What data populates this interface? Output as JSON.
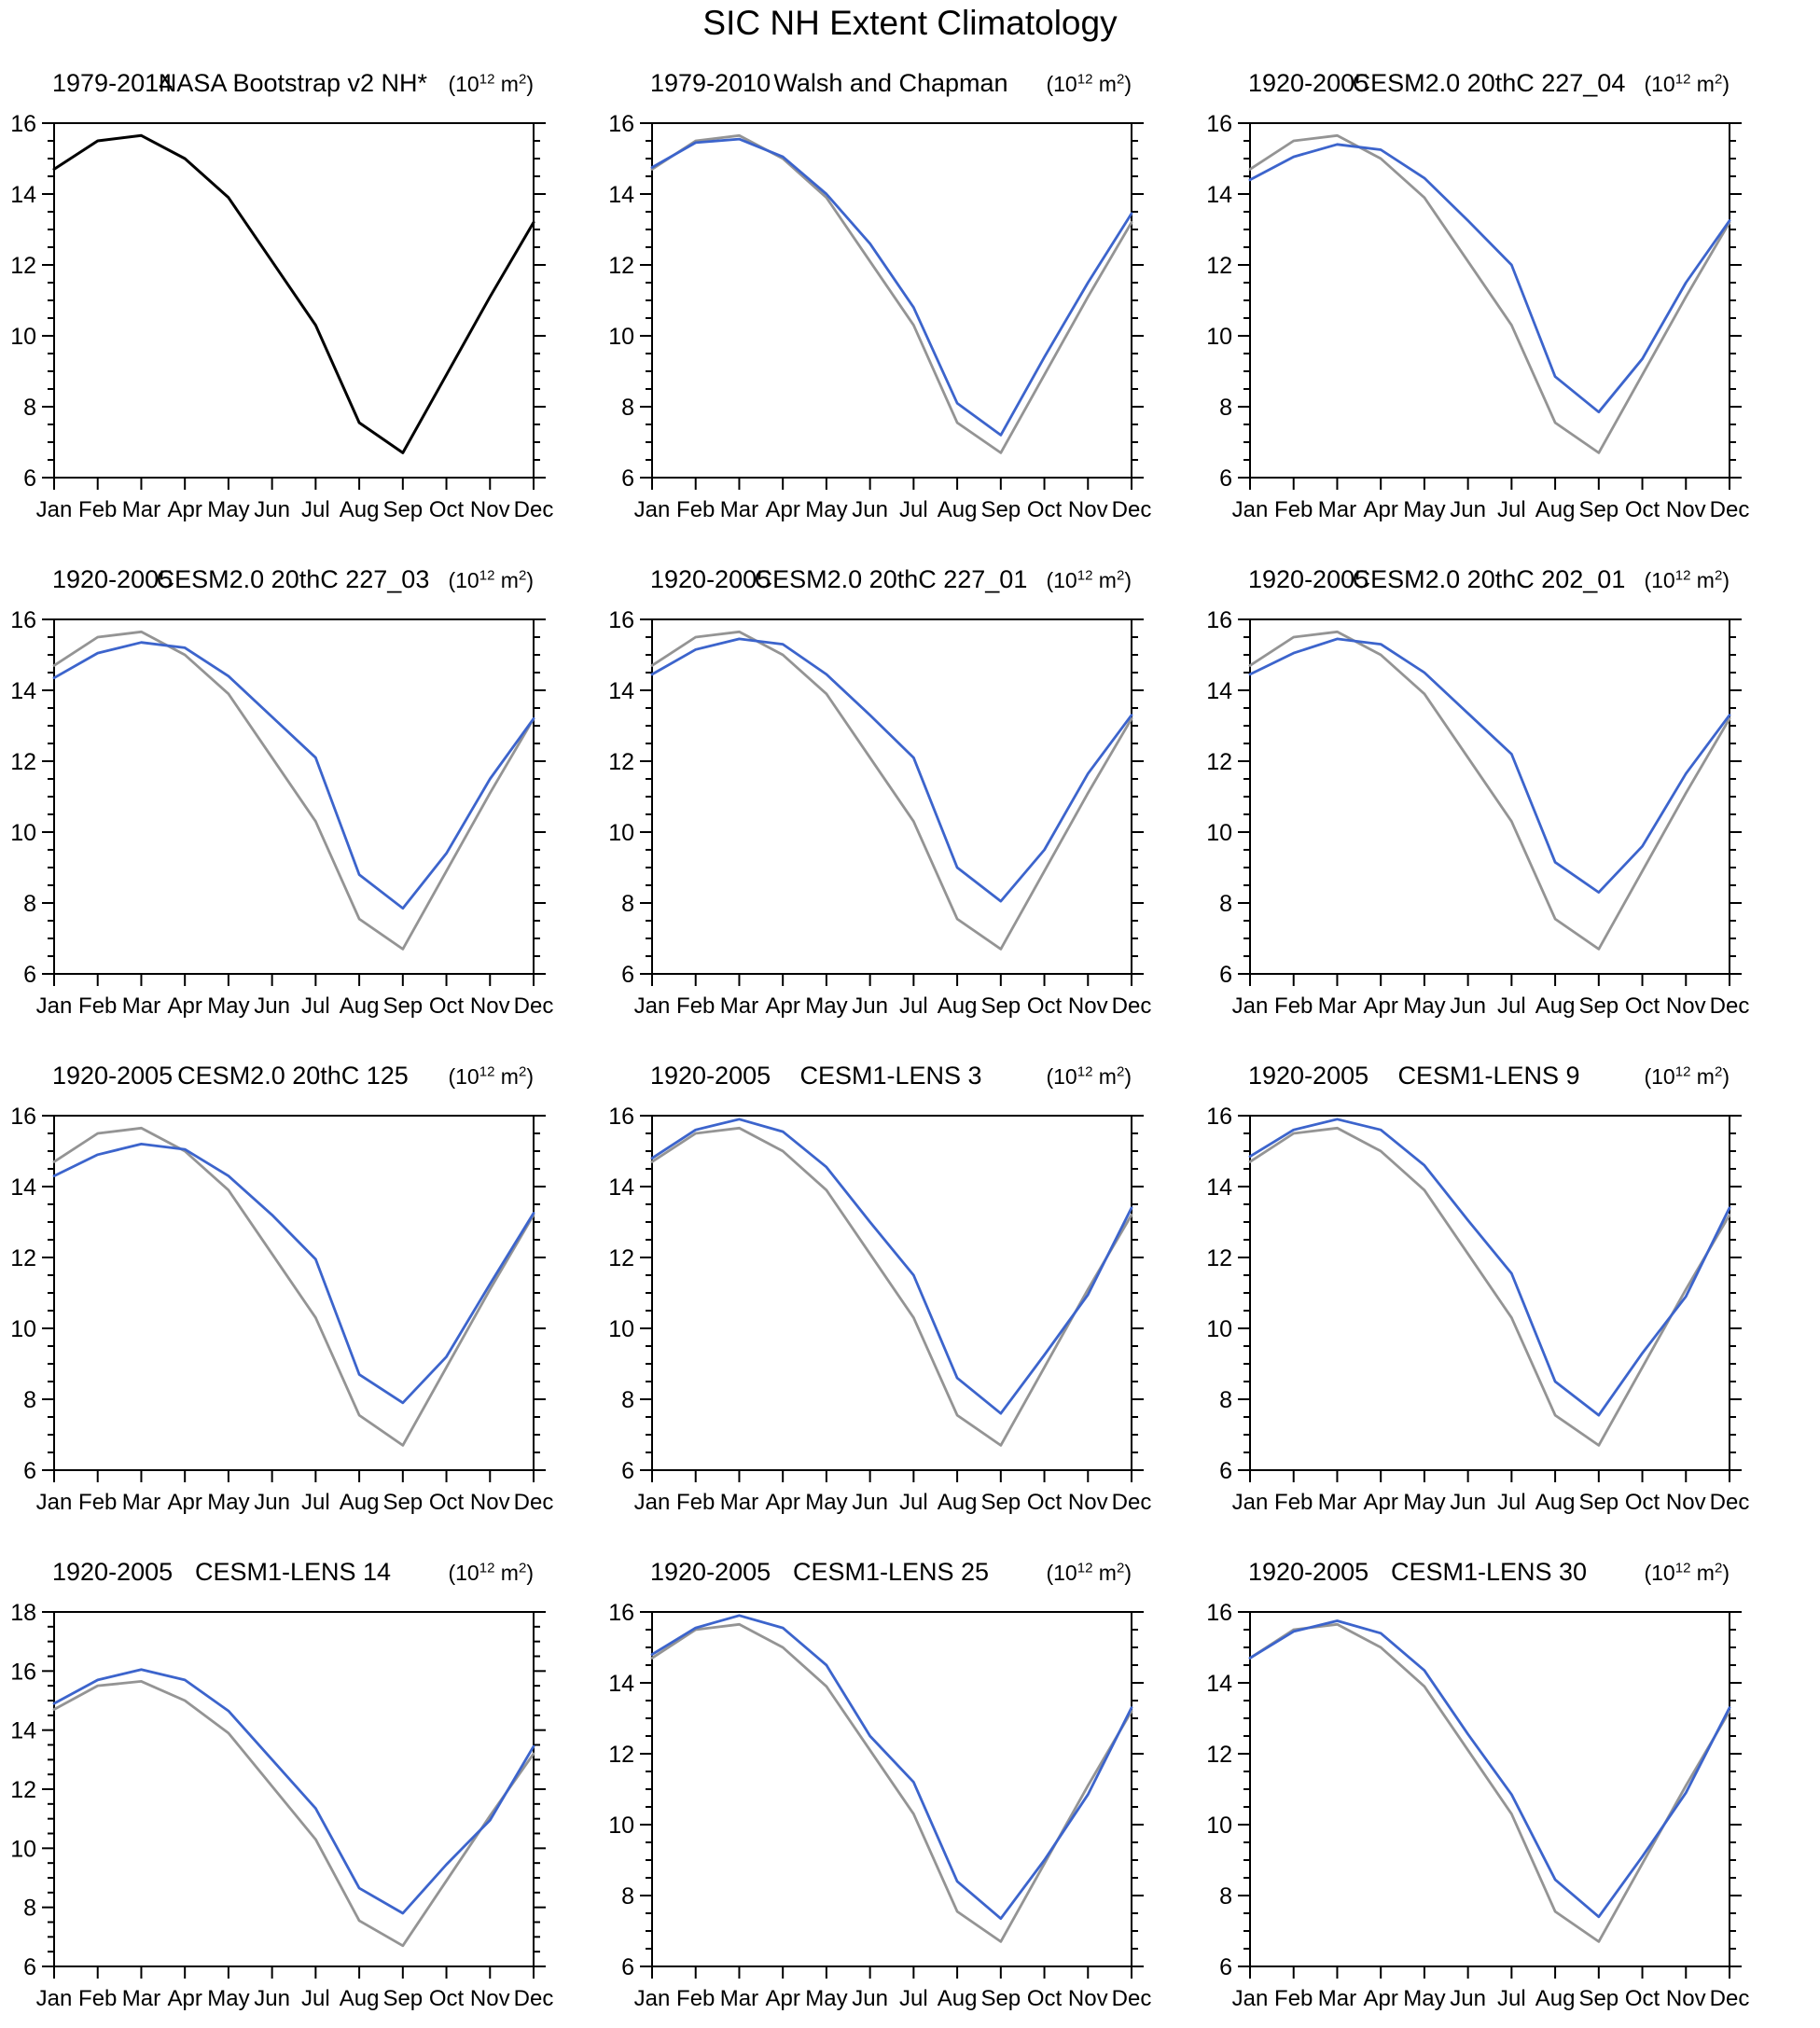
{
  "page_title": "SIC NH Extent Climatology",
  "common": {
    "months": [
      "Jan",
      "Feb",
      "Mar",
      "Apr",
      "May",
      "Jun",
      "Jul",
      "Aug",
      "Sep",
      "Oct",
      "Nov",
      "Dec"
    ],
    "unit_prefix": "(10",
    "unit_exp": "12",
    "unit_mid": " m",
    "unit_exp2": "2",
    "unit_suffix": ")"
  },
  "colors": {
    "obs_black": "#000000",
    "obs_gray": "#949494",
    "model_blue": "#3c64cc",
    "axis": "#000000"
  },
  "chart_data": [
    {
      "type": "line",
      "period": "1979-2014",
      "title": "NASA Bootstrap v2 NH*",
      "xlabel": "",
      "ylabel": "",
      "ylim": [
        6,
        16
      ],
      "ytick_step": 2,
      "minor_step": 0.5,
      "yticks": [
        "6",
        "8",
        "10",
        "12",
        "14",
        "16"
      ],
      "grid": false,
      "legend": "none",
      "series": [
        {
          "name": "obs-black",
          "color": "#000000",
          "width": 3,
          "values": [
            14.7,
            15.5,
            15.65,
            15.0,
            13.9,
            12.1,
            10.3,
            7.55,
            6.7,
            8.9,
            11.1,
            13.2
          ]
        }
      ]
    },
    {
      "type": "line",
      "period": "1979-2010",
      "title": "Walsh and Chapman",
      "xlabel": "",
      "ylabel": "",
      "ylim": [
        6,
        16
      ],
      "ytick_step": 2,
      "minor_step": 0.5,
      "yticks": [
        "6",
        "8",
        "10",
        "12",
        "14",
        "16"
      ],
      "grid": false,
      "legend": "none",
      "series": [
        {
          "name": "obs-gray",
          "color": "#949494",
          "width": 2.8,
          "values": [
            14.7,
            15.5,
            15.65,
            15.0,
            13.9,
            12.1,
            10.3,
            7.55,
            6.7,
            8.9,
            11.1,
            13.2
          ]
        },
        {
          "name": "model-blue",
          "color": "#3c64cc",
          "width": 2.8,
          "values": [
            14.75,
            15.45,
            15.55,
            15.05,
            14.0,
            12.6,
            10.8,
            8.1,
            7.2,
            9.4,
            11.5,
            13.45
          ]
        }
      ]
    },
    {
      "type": "line",
      "period": "1920-2005",
      "title": "CESM2.0 20thC 227_04",
      "xlabel": "",
      "ylabel": "",
      "ylim": [
        6,
        16
      ],
      "ytick_step": 2,
      "minor_step": 0.5,
      "yticks": [
        "6",
        "8",
        "10",
        "12",
        "14",
        "16"
      ],
      "grid": false,
      "legend": "none",
      "series": [
        {
          "name": "obs-gray",
          "color": "#949494",
          "width": 2.8,
          "values": [
            14.7,
            15.5,
            15.65,
            15.0,
            13.9,
            12.1,
            10.3,
            7.55,
            6.7,
            8.9,
            11.1,
            13.2
          ]
        },
        {
          "name": "model-blue",
          "color": "#3c64cc",
          "width": 2.8,
          "values": [
            14.4,
            15.05,
            15.4,
            15.25,
            14.45,
            13.25,
            12.0,
            8.85,
            7.85,
            9.35,
            11.5,
            13.25
          ]
        }
      ]
    },
    {
      "type": "line",
      "period": "1920-2005",
      "title": "CESM2.0 20thC 227_03",
      "xlabel": "",
      "ylabel": "",
      "ylim": [
        6,
        16
      ],
      "ytick_step": 2,
      "minor_step": 0.5,
      "yticks": [
        "6",
        "8",
        "10",
        "12",
        "14",
        "16"
      ],
      "grid": false,
      "legend": "none",
      "series": [
        {
          "name": "obs-gray",
          "color": "#949494",
          "width": 2.8,
          "values": [
            14.7,
            15.5,
            15.65,
            15.0,
            13.9,
            12.1,
            10.3,
            7.55,
            6.7,
            8.9,
            11.1,
            13.2
          ]
        },
        {
          "name": "model-blue",
          "color": "#3c64cc",
          "width": 2.8,
          "values": [
            14.35,
            15.05,
            15.35,
            15.2,
            14.4,
            13.25,
            12.1,
            8.8,
            7.85,
            9.4,
            11.5,
            13.2
          ]
        }
      ]
    },
    {
      "type": "line",
      "period": "1920-2005",
      "title": "CESM2.0 20thC 227_01",
      "xlabel": "",
      "ylabel": "",
      "ylim": [
        6,
        16
      ],
      "ytick_step": 2,
      "minor_step": 0.5,
      "yticks": [
        "6",
        "8",
        "10",
        "12",
        "14",
        "16"
      ],
      "grid": false,
      "legend": "none",
      "series": [
        {
          "name": "obs-gray",
          "color": "#949494",
          "width": 2.8,
          "values": [
            14.7,
            15.5,
            15.65,
            15.0,
            13.9,
            12.1,
            10.3,
            7.55,
            6.7,
            8.9,
            11.1,
            13.2
          ]
        },
        {
          "name": "model-blue",
          "color": "#3c64cc",
          "width": 2.8,
          "values": [
            14.45,
            15.15,
            15.45,
            15.3,
            14.45,
            13.3,
            12.1,
            9.0,
            8.05,
            9.5,
            11.65,
            13.3
          ]
        }
      ]
    },
    {
      "type": "line",
      "period": "1920-2005",
      "title": "CESM2.0 20thC 202_01",
      "xlabel": "",
      "ylabel": "",
      "ylim": [
        6,
        16
      ],
      "ytick_step": 2,
      "minor_step": 0.5,
      "yticks": [
        "6",
        "8",
        "10",
        "12",
        "14",
        "16"
      ],
      "grid": false,
      "legend": "none",
      "series": [
        {
          "name": "obs-gray",
          "color": "#949494",
          "width": 2.8,
          "values": [
            14.7,
            15.5,
            15.65,
            15.0,
            13.9,
            12.1,
            10.3,
            7.55,
            6.7,
            8.9,
            11.1,
            13.2
          ]
        },
        {
          "name": "model-blue",
          "color": "#3c64cc",
          "width": 2.8,
          "values": [
            14.45,
            15.05,
            15.45,
            15.3,
            14.5,
            13.35,
            12.2,
            9.15,
            8.3,
            9.6,
            11.65,
            13.3
          ]
        }
      ]
    },
    {
      "type": "line",
      "period": "1920-2005",
      "title": "CESM2.0 20thC 125",
      "xlabel": "",
      "ylabel": "",
      "ylim": [
        6,
        16
      ],
      "ytick_step": 2,
      "minor_step": 0.5,
      "yticks": [
        "6",
        "8",
        "10",
        "12",
        "14",
        "16"
      ],
      "grid": false,
      "legend": "none",
      "series": [
        {
          "name": "obs-gray",
          "color": "#949494",
          "width": 2.8,
          "values": [
            14.7,
            15.5,
            15.65,
            15.0,
            13.9,
            12.1,
            10.3,
            7.55,
            6.7,
            8.9,
            11.1,
            13.2
          ]
        },
        {
          "name": "model-blue",
          "color": "#3c64cc",
          "width": 2.8,
          "values": [
            14.3,
            14.9,
            15.2,
            15.05,
            14.3,
            13.2,
            11.95,
            8.7,
            7.9,
            9.2,
            11.25,
            13.25
          ]
        }
      ]
    },
    {
      "type": "line",
      "period": "1920-2005",
      "title": "CESM1-LENS 3",
      "xlabel": "",
      "ylabel": "",
      "ylim": [
        6,
        16
      ],
      "ytick_step": 2,
      "minor_step": 0.5,
      "yticks": [
        "6",
        "8",
        "10",
        "12",
        "14",
        "16"
      ],
      "grid": false,
      "legend": "none",
      "series": [
        {
          "name": "obs-gray",
          "color": "#949494",
          "width": 2.8,
          "values": [
            14.7,
            15.5,
            15.65,
            15.0,
            13.9,
            12.1,
            10.3,
            7.55,
            6.7,
            8.9,
            11.1,
            13.2
          ]
        },
        {
          "name": "model-blue",
          "color": "#3c64cc",
          "width": 2.8,
          "values": [
            14.8,
            15.6,
            15.9,
            15.55,
            14.55,
            13.0,
            11.5,
            8.6,
            7.6,
            9.25,
            10.95,
            13.4
          ]
        }
      ]
    },
    {
      "type": "line",
      "period": "1920-2005",
      "title": "CESM1-LENS 9",
      "xlabel": "",
      "ylabel": "",
      "ylim": [
        6,
        16
      ],
      "ytick_step": 2,
      "minor_step": 0.5,
      "yticks": [
        "6",
        "8",
        "10",
        "12",
        "14",
        "16"
      ],
      "grid": false,
      "legend": "none",
      "series": [
        {
          "name": "obs-gray",
          "color": "#949494",
          "width": 2.8,
          "values": [
            14.7,
            15.5,
            15.65,
            15.0,
            13.9,
            12.1,
            10.3,
            7.55,
            6.7,
            8.9,
            11.1,
            13.2
          ]
        },
        {
          "name": "model-blue",
          "color": "#3c64cc",
          "width": 2.8,
          "values": [
            14.85,
            15.6,
            15.9,
            15.6,
            14.6,
            13.05,
            11.55,
            8.5,
            7.55,
            9.3,
            10.9,
            13.4
          ]
        }
      ]
    },
    {
      "type": "line",
      "period": "1920-2005",
      "title": "CESM1-LENS 14",
      "xlabel": "",
      "ylabel": "",
      "ylim": [
        6,
        18
      ],
      "ytick_step": 2,
      "minor_step": 0.5,
      "yticks": [
        "6",
        "8",
        "10",
        "12",
        "14",
        "16",
        "18"
      ],
      "grid": false,
      "legend": "none",
      "series": [
        {
          "name": "obs-gray",
          "color": "#949494",
          "width": 2.8,
          "values": [
            14.7,
            15.5,
            15.65,
            15.0,
            13.9,
            12.1,
            10.3,
            7.55,
            6.7,
            8.9,
            11.1,
            13.2
          ]
        },
        {
          "name": "model-blue",
          "color": "#3c64cc",
          "width": 2.8,
          "values": [
            14.9,
            15.7,
            16.05,
            15.7,
            14.65,
            13.0,
            11.35,
            8.65,
            7.8,
            9.45,
            10.95,
            13.45
          ]
        }
      ]
    },
    {
      "type": "line",
      "period": "1920-2005",
      "title": "CESM1-LENS 25",
      "xlabel": "",
      "ylabel": "",
      "ylim": [
        6,
        16
      ],
      "ytick_step": 2,
      "minor_step": 0.5,
      "yticks": [
        "6",
        "8",
        "10",
        "12",
        "14",
        "16"
      ],
      "grid": false,
      "legend": "none",
      "series": [
        {
          "name": "obs-gray",
          "color": "#949494",
          "width": 2.8,
          "values": [
            14.7,
            15.5,
            15.65,
            15.0,
            13.9,
            12.1,
            10.3,
            7.55,
            6.7,
            8.9,
            11.1,
            13.2
          ]
        },
        {
          "name": "model-blue",
          "color": "#3c64cc",
          "width": 2.8,
          "values": [
            14.8,
            15.55,
            15.9,
            15.55,
            14.5,
            12.5,
            11.2,
            8.4,
            7.35,
            9.0,
            10.85,
            13.3
          ]
        }
      ]
    },
    {
      "type": "line",
      "period": "1920-2005",
      "title": "CESM1-LENS 30",
      "xlabel": "",
      "ylabel": "",
      "ylim": [
        6,
        16
      ],
      "ytick_step": 2,
      "minor_step": 0.5,
      "yticks": [
        "6",
        "8",
        "10",
        "12",
        "14",
        "16"
      ],
      "grid": false,
      "legend": "none",
      "series": [
        {
          "name": "obs-gray",
          "color": "#949494",
          "width": 2.8,
          "values": [
            14.7,
            15.5,
            15.65,
            15.0,
            13.9,
            12.1,
            10.3,
            7.55,
            6.7,
            8.9,
            11.1,
            13.2
          ]
        },
        {
          "name": "model-blue",
          "color": "#3c64cc",
          "width": 2.8,
          "values": [
            14.7,
            15.45,
            15.75,
            15.4,
            14.35,
            12.55,
            10.85,
            8.45,
            7.4,
            9.1,
            10.9,
            13.3
          ]
        }
      ]
    }
  ]
}
